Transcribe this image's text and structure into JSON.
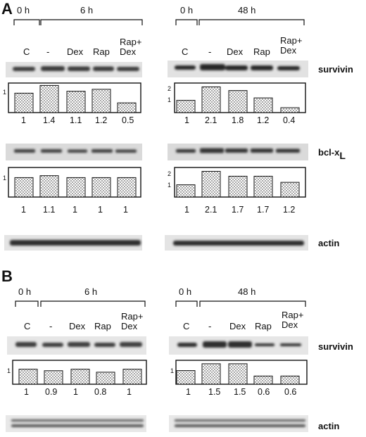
{
  "panels": [
    {
      "letter": "A",
      "halves": [
        {
          "time_zero": "0 h",
          "time": "6 h",
          "conditions": [
            "C",
            "-",
            "Dex",
            "Rap",
            "Rap+\nDex"
          ],
          "blots": [
            {
              "protein": "survivin",
              "scale": [
                1
              ],
              "values": [
                "1",
                "1.4",
                "1.1",
                "1.2",
                "0.5"
              ],
              "bars": [
                1,
                1.4,
                1.1,
                1.2,
                0.5
              ]
            },
            {
              "protein": "bcl-xL",
              "scale": [
                1
              ],
              "values": [
                "1",
                "1.1",
                "1",
                "1",
                "1"
              ],
              "bars": [
                1,
                1.1,
                1,
                1,
                1
              ]
            }
          ]
        },
        {
          "time_zero": "0 h",
          "time": "48 h",
          "conditions": [
            "C",
            "-",
            "Dex",
            "Rap",
            "Rap+\nDex"
          ],
          "blots": [
            {
              "protein": "survivin",
              "scale": [
                1,
                2
              ],
              "values": [
                "1",
                "2.1",
                "1.8",
                "1.2",
                "0.4"
              ],
              "bars": [
                1,
                2.1,
                1.8,
                1.2,
                0.4
              ]
            },
            {
              "protein": "bcl-xL",
              "scale": [
                1,
                2
              ],
              "values": [
                "1",
                "2.1",
                "1.7",
                "1.7",
                "1.2"
              ],
              "bars": [
                1,
                2.1,
                1.7,
                1.7,
                1.2
              ]
            }
          ]
        }
      ],
      "labels": {
        "survivin": "survivin",
        "bcl_main": "bcl-x",
        "bcl_sub": "L",
        "actin": "actin"
      }
    },
    {
      "letter": "B",
      "halves": [
        {
          "time_zero": "0 h",
          "time": "6 h",
          "conditions": [
            "C",
            "-",
            "Dex",
            "Rap",
            "Rap+\nDex"
          ],
          "blots": [
            {
              "protein": "survivin",
              "scale": [
                1
              ],
              "values": [
                "1",
                "0.9",
                "1",
                "0.8",
                "1"
              ],
              "bars": [
                1,
                0.9,
                1,
                0.8,
                1
              ]
            }
          ]
        },
        {
          "time_zero": "0 h",
          "time": "48 h",
          "conditions": [
            "C",
            "-",
            "Dex",
            "Rap",
            "Rap+\nDex"
          ],
          "blots": [
            {
              "protein": "survivin",
              "scale": [
                1
              ],
              "values": [
                "1",
                "1.5",
                "1.5",
                "0.6",
                "0.6"
              ],
              "bars": [
                1,
                1.5,
                1.5,
                0.6,
                0.6
              ]
            }
          ]
        }
      ],
      "labels": {
        "survivin": "survivin",
        "actin": "actin"
      }
    }
  ],
  "chart_data": [
    {
      "type": "bar",
      "categories": [
        "C",
        "-",
        "Dex",
        "Rap",
        "Rap+Dex"
      ],
      "values": [
        1,
        1.4,
        1.1,
        1.2,
        0.5
      ]
    },
    {
      "type": "bar",
      "categories": [
        "C",
        "-",
        "Dex",
        "Rap",
        "Rap+Dex"
      ],
      "values": [
        1,
        2.1,
        1.8,
        1.2,
        0.4
      ]
    },
    {
      "type": "bar",
      "categories": [
        "C",
        "-",
        "Dex",
        "Rap",
        "Rap+Dex"
      ],
      "values": [
        1,
        1.1,
        1,
        1,
        1
      ]
    },
    {
      "type": "bar",
      "categories": [
        "C",
        "-",
        "Dex",
        "Rap",
        "Rap+Dex"
      ],
      "values": [
        1,
        2.1,
        1.7,
        1.7,
        1.2
      ]
    },
    {
      "type": "bar",
      "categories": [
        "C",
        "-",
        "Dex",
        "Rap",
        "Rap+Dex"
      ],
      "values": [
        1,
        0.9,
        1,
        0.8,
        1
      ]
    },
    {
      "type": "bar",
      "categories": [
        "C",
        "-",
        "Dex",
        "Rap",
        "Rap+Dex"
      ],
      "values": [
        1,
        1.5,
        1.5,
        0.6,
        0.6
      ]
    }
  ]
}
